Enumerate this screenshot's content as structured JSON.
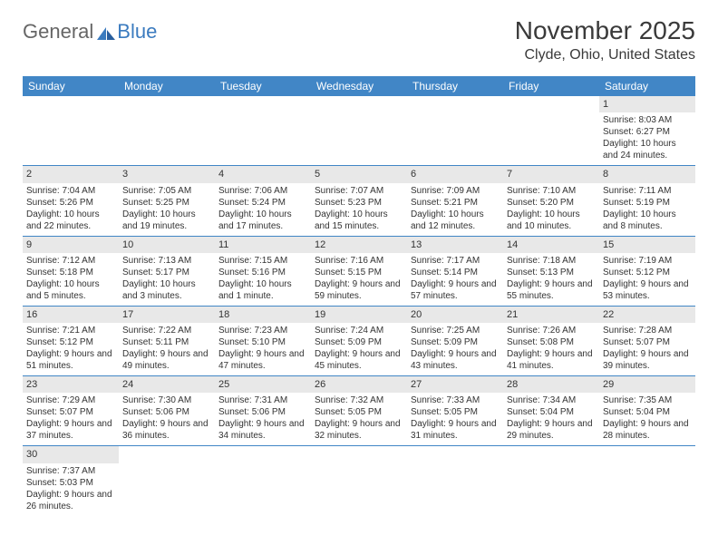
{
  "logo": {
    "general": "General",
    "blue": "Blue"
  },
  "title": "November 2025",
  "location": "Clyde, Ohio, United States",
  "day_headers": [
    "Sunday",
    "Monday",
    "Tuesday",
    "Wednesday",
    "Thursday",
    "Friday",
    "Saturday"
  ],
  "colors": {
    "header_bg": "#4186c6",
    "header_text": "#ffffff",
    "daynum_bg": "#e8e8e8",
    "text": "#333333",
    "border": "#4186c6",
    "logo_blue": "#3b7bbf"
  },
  "grid": [
    [
      null,
      null,
      null,
      null,
      null,
      null,
      {
        "n": "1",
        "sr": "8:03 AM",
        "ss": "6:27 PM",
        "dl": "10 hours and 24 minutes."
      }
    ],
    [
      {
        "n": "2",
        "sr": "7:04 AM",
        "ss": "5:26 PM",
        "dl": "10 hours and 22 minutes."
      },
      {
        "n": "3",
        "sr": "7:05 AM",
        "ss": "5:25 PM",
        "dl": "10 hours and 19 minutes."
      },
      {
        "n": "4",
        "sr": "7:06 AM",
        "ss": "5:24 PM",
        "dl": "10 hours and 17 minutes."
      },
      {
        "n": "5",
        "sr": "7:07 AM",
        "ss": "5:23 PM",
        "dl": "10 hours and 15 minutes."
      },
      {
        "n": "6",
        "sr": "7:09 AM",
        "ss": "5:21 PM",
        "dl": "10 hours and 12 minutes."
      },
      {
        "n": "7",
        "sr": "7:10 AM",
        "ss": "5:20 PM",
        "dl": "10 hours and 10 minutes."
      },
      {
        "n": "8",
        "sr": "7:11 AM",
        "ss": "5:19 PM",
        "dl": "10 hours and 8 minutes."
      }
    ],
    [
      {
        "n": "9",
        "sr": "7:12 AM",
        "ss": "5:18 PM",
        "dl": "10 hours and 5 minutes."
      },
      {
        "n": "10",
        "sr": "7:13 AM",
        "ss": "5:17 PM",
        "dl": "10 hours and 3 minutes."
      },
      {
        "n": "11",
        "sr": "7:15 AM",
        "ss": "5:16 PM",
        "dl": "10 hours and 1 minute."
      },
      {
        "n": "12",
        "sr": "7:16 AM",
        "ss": "5:15 PM",
        "dl": "9 hours and 59 minutes."
      },
      {
        "n": "13",
        "sr": "7:17 AM",
        "ss": "5:14 PM",
        "dl": "9 hours and 57 minutes."
      },
      {
        "n": "14",
        "sr": "7:18 AM",
        "ss": "5:13 PM",
        "dl": "9 hours and 55 minutes."
      },
      {
        "n": "15",
        "sr": "7:19 AM",
        "ss": "5:12 PM",
        "dl": "9 hours and 53 minutes."
      }
    ],
    [
      {
        "n": "16",
        "sr": "7:21 AM",
        "ss": "5:12 PM",
        "dl": "9 hours and 51 minutes."
      },
      {
        "n": "17",
        "sr": "7:22 AM",
        "ss": "5:11 PM",
        "dl": "9 hours and 49 minutes."
      },
      {
        "n": "18",
        "sr": "7:23 AM",
        "ss": "5:10 PM",
        "dl": "9 hours and 47 minutes."
      },
      {
        "n": "19",
        "sr": "7:24 AM",
        "ss": "5:09 PM",
        "dl": "9 hours and 45 minutes."
      },
      {
        "n": "20",
        "sr": "7:25 AM",
        "ss": "5:09 PM",
        "dl": "9 hours and 43 minutes."
      },
      {
        "n": "21",
        "sr": "7:26 AM",
        "ss": "5:08 PM",
        "dl": "9 hours and 41 minutes."
      },
      {
        "n": "22",
        "sr": "7:28 AM",
        "ss": "5:07 PM",
        "dl": "9 hours and 39 minutes."
      }
    ],
    [
      {
        "n": "23",
        "sr": "7:29 AM",
        "ss": "5:07 PM",
        "dl": "9 hours and 37 minutes."
      },
      {
        "n": "24",
        "sr": "7:30 AM",
        "ss": "5:06 PM",
        "dl": "9 hours and 36 minutes."
      },
      {
        "n": "25",
        "sr": "7:31 AM",
        "ss": "5:06 PM",
        "dl": "9 hours and 34 minutes."
      },
      {
        "n": "26",
        "sr": "7:32 AM",
        "ss": "5:05 PM",
        "dl": "9 hours and 32 minutes."
      },
      {
        "n": "27",
        "sr": "7:33 AM",
        "ss": "5:05 PM",
        "dl": "9 hours and 31 minutes."
      },
      {
        "n": "28",
        "sr": "7:34 AM",
        "ss": "5:04 PM",
        "dl": "9 hours and 29 minutes."
      },
      {
        "n": "29",
        "sr": "7:35 AM",
        "ss": "5:04 PM",
        "dl": "9 hours and 28 minutes."
      }
    ],
    [
      {
        "n": "30",
        "sr": "7:37 AM",
        "ss": "5:03 PM",
        "dl": "9 hours and 26 minutes."
      },
      null,
      null,
      null,
      null,
      null,
      null
    ]
  ],
  "labels": {
    "sunrise": "Sunrise: ",
    "sunset": "Sunset: ",
    "daylight": "Daylight: "
  }
}
